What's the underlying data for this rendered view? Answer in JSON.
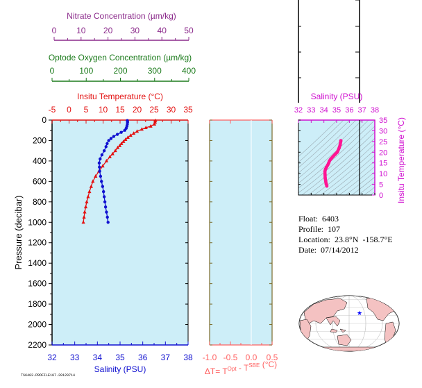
{
  "colors": {
    "nitrate": "#8b2a8b",
    "oxygen": "#1a7a1a",
    "temperature": "#e31010",
    "salinity": "#1010d0",
    "salinity_inset": "#d010d0",
    "delta_t": "#ff6060",
    "frame_axis_dt": "#7a6a2a",
    "plot_bg": "#cdeef8",
    "profile_ts": "#ff1493",
    "land": "#f4c2c2",
    "ocean": "#ffffff",
    "float_marker": "#0000ff"
  },
  "info": {
    "float": "Float:  6403",
    "profile": "Profile:  107",
    "location": "Location:  23.8°N  -158.7°E",
    "date": "Date:  07/14/2012"
  },
  "footer": "TS6403.PROFILE107.20120714",
  "chart_data": [
    {
      "type": "line",
      "title": "",
      "ylabel": "Pressure (decibar)",
      "yticks": [
        0,
        200,
        400,
        600,
        800,
        1000,
        1200,
        1400,
        1600,
        1800,
        2000,
        2200
      ],
      "ylim": [
        0,
        2200
      ],
      "axes": {
        "salinity": {
          "label": "Salinity (PSU)",
          "range": [
            32,
            38
          ],
          "ticks": [
            32,
            33,
            34,
            35,
            36,
            37,
            38
          ]
        },
        "temperature": {
          "label": "Insitu Temperature (°C)",
          "range": [
            -5,
            35
          ],
          "ticks": [
            -5,
            0,
            5,
            10,
            15,
            20,
            25,
            30,
            35
          ]
        },
        "oxygen": {
          "label": "Optode Oxygen Concentration (µm/kg)",
          "range": [
            0,
            400
          ],
          "ticks": [
            0,
            100,
            200,
            300,
            400
          ]
        },
        "nitrate": {
          "label": "Nitrate Concentration (µm/kg)",
          "range": [
            0,
            50
          ],
          "ticks": [
            0,
            10,
            20,
            30,
            40,
            50
          ]
        }
      },
      "series": [
        {
          "axis": "temperature",
          "pressure": [
            5,
            20,
            40,
            60,
            75,
            90,
            110,
            130,
            150,
            170,
            190,
            210,
            230,
            250,
            270,
            300,
            330,
            360,
            400,
            450,
            500,
            550,
            600,
            650,
            700,
            750,
            800,
            850,
            900,
            950,
            1000
          ],
          "values": [
            25.4,
            25.3,
            25.1,
            24.0,
            22.6,
            21.4,
            20.0,
            19.0,
            18.1,
            17.3,
            16.6,
            16.0,
            15.4,
            14.9,
            14.3,
            13.6,
            12.8,
            12.0,
            11.0,
            9.9,
            8.8,
            7.8,
            7.0,
            6.5,
            6.0,
            5.6,
            5.2,
            4.9,
            4.6,
            4.4,
            4.2
          ]
        },
        {
          "axis": "salinity",
          "pressure": [
            5,
            20,
            40,
            60,
            80,
            100,
            120,
            140,
            160,
            180,
            200,
            230,
            260,
            300,
            340,
            380,
            420,
            460,
            500,
            550,
            600,
            650,
            700,
            750,
            800,
            850,
            900,
            950,
            1000
          ],
          "values": [
            35.32,
            35.33,
            35.32,
            35.3,
            35.27,
            35.21,
            35.05,
            34.88,
            34.72,
            34.6,
            34.5,
            34.43,
            34.38,
            34.3,
            34.2,
            34.12,
            34.08,
            34.09,
            34.1,
            34.14,
            34.18,
            34.23,
            34.27,
            34.3,
            34.33,
            34.36,
            34.4,
            34.44,
            34.47
          ]
        }
      ]
    },
    {
      "type": "line",
      "xlabel": "ΔT= T^Opt - T^SBE (°C)",
      "xlim": [
        -1.0,
        0.5
      ],
      "xticks": [
        -1.0,
        -0.5,
        0.0,
        0.5
      ],
      "tick_labels": [
        "-1.0",
        "-0.5",
        "0.0",
        "0.5"
      ],
      "ylim": [
        0,
        2200
      ],
      "series": []
    },
    {
      "type": "scatter",
      "xlabel": "Salinity (PSU)",
      "ylabel": "Insitu Temperature (°C)",
      "xlim": [
        32,
        38
      ],
      "ylim": [
        0,
        35
      ],
      "xticks": [
        32,
        33,
        34,
        35,
        36,
        37,
        38
      ],
      "yticks": [
        0,
        5,
        10,
        15,
        20,
        25,
        30,
        35
      ],
      "grid": true,
      "series": [
        {
          "x": [
            35.33,
            35.32,
            35.28,
            35.2,
            35.05,
            34.88,
            34.72,
            34.6,
            34.5,
            34.43,
            34.38,
            34.3,
            34.2,
            34.12,
            34.08,
            34.09,
            34.1,
            34.14,
            34.18,
            34.23
          ],
          "y": [
            25.4,
            25.0,
            23.5,
            22.0,
            20.0,
            19.0,
            18.0,
            17.2,
            16.5,
            15.8,
            15.0,
            14.0,
            13.0,
            12.0,
            11.0,
            9.5,
            8.0,
            6.5,
            5.2,
            4.2
          ]
        }
      ]
    }
  ]
}
